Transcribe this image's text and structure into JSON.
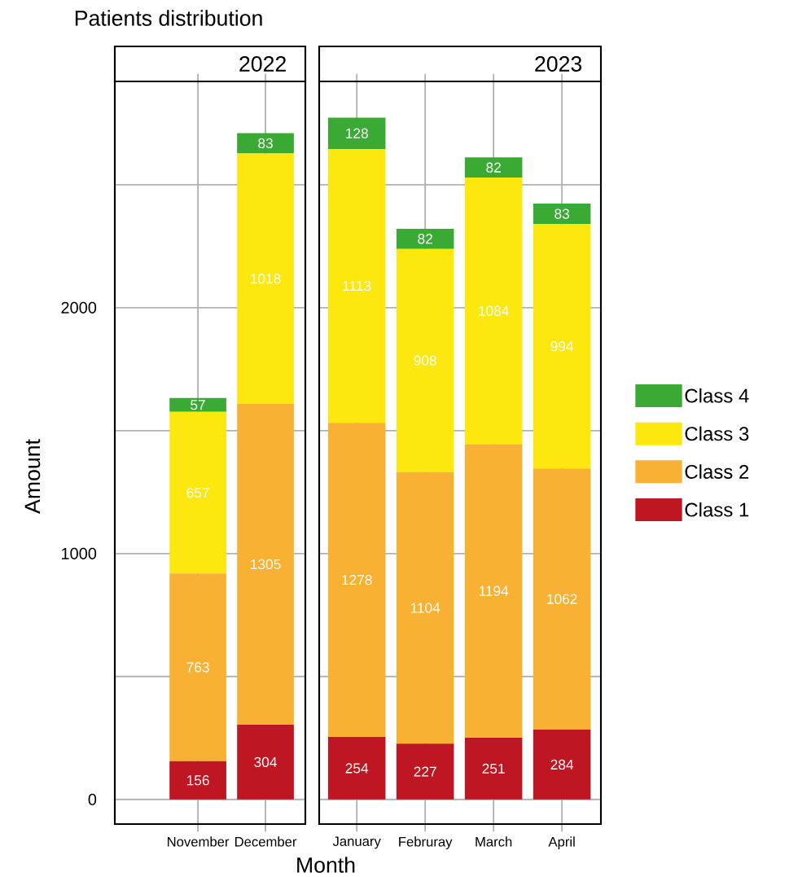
{
  "chart_data": [
    {
      "type": "bar",
      "title": "Patients distribution",
      "subtitle": "2022",
      "xlabel": "Month",
      "ylabel": "Amount",
      "categories": [
        "November",
        "December"
      ],
      "stacked": true,
      "data_labels": true,
      "grid": true,
      "ylim": [
        -100,
        2920
      ],
      "yticks": [
        0,
        {
          "value": 500,
          "label": null
        },
        1000,
        {
          "value": 1500,
          "label": null
        },
        2000,
        {
          "value": 2500,
          "label": null
        }
      ],
      "series": [
        {
          "color": "#be1622",
          "values": [
            156,
            304
          ]
        },
        {
          "color": "#f8b133",
          "values": [
            763,
            1305
          ]
        },
        {
          "color": "#fce80f",
          "values": [
            657,
            1018
          ]
        },
        {
          "color": "#3aaa35",
          "values": [
            57,
            83
          ]
        }
      ]
    },
    {
      "type": "bar",
      "subtitle": "2023",
      "categories": [
        "January",
        "Februray",
        "March",
        "April"
      ],
      "stacked": true,
      "data_labels": true,
      "grid": true,
      "legend": "right",
      "tick_labels": "x",
      "ylim": [
        -100,
        2920
      ],
      "yticks": [
        0,
        {
          "value": 500,
          "label": null
        },
        1000,
        {
          "value": 1500,
          "label": null
        },
        2000,
        {
          "value": 2500,
          "label": null
        }
      ],
      "series": [
        {
          "name": "Class 1",
          "color": "#be1622",
          "values": [
            254,
            227,
            251,
            284
          ]
        },
        {
          "name": "Class 2",
          "color": "#f8b133",
          "values": [
            1278,
            1104,
            1194,
            1062
          ]
        },
        {
          "name": "Class 3",
          "color": "#fce80f",
          "values": [
            1113,
            908,
            1084,
            994
          ]
        },
        {
          "name": "Class 4",
          "color": "#3aaa35",
          "values": [
            128,
            82,
            82,
            83
          ]
        }
      ]
    }
  ]
}
